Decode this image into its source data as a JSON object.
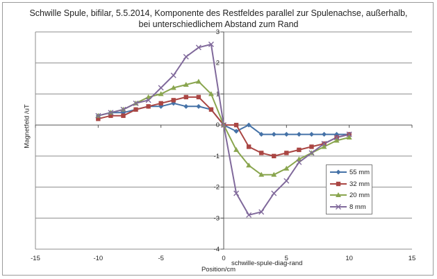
{
  "chart_data": {
    "type": "line",
    "title_line1": "Schwille Spule, bifilar, 5.5.2014, Komponente des Restfeldes parallel zur Spulenachse, außerhalb,",
    "title_line2": "bei unterschiedlichem Abstand zum Rand",
    "xlabel": "Position/cm",
    "ylabel": "Magnetfeld /uT",
    "annotation": "schwille-spule-diag-rand",
    "xlim": [
      -15,
      15
    ],
    "ylim": [
      -4,
      3
    ],
    "x_ticks": [
      -15,
      -10,
      -5,
      0,
      5,
      10,
      15
    ],
    "y_ticks": [
      -4,
      -3,
      -2,
      -1,
      0,
      1,
      2,
      3
    ],
    "grid": "horizontal",
    "legend_position": "right",
    "x": [
      -10,
      -9,
      -8,
      -7,
      -6,
      -5,
      -4,
      -3,
      -2,
      -1,
      0,
      1,
      2,
      3,
      4,
      5,
      6,
      7,
      8,
      9,
      10
    ],
    "series": [
      {
        "name": "55 mm",
        "color": "#4572a7",
        "marker": "diamond",
        "values": [
          0.3,
          0.4,
          0.4,
          0.5,
          0.6,
          0.6,
          0.7,
          0.6,
          0.6,
          0.5,
          0,
          -0.2,
          0,
          -0.3,
          -0.3,
          -0.3,
          -0.3,
          -0.3,
          -0.3,
          -0.3,
          -0.3
        ]
      },
      {
        "name": "32 mm",
        "color": "#aa4643",
        "marker": "square",
        "values": [
          0.2,
          0.3,
          0.3,
          0.5,
          0.6,
          0.7,
          0.8,
          0.9,
          0.9,
          0.5,
          0,
          0,
          -0.7,
          -0.9,
          -1.0,
          -0.9,
          -0.8,
          -0.7,
          -0.6,
          -0.4,
          -0.3
        ]
      },
      {
        "name": "20 mm",
        "color": "#89a54e",
        "marker": "triangle",
        "values": [
          0.3,
          0.4,
          0.5,
          0.7,
          0.9,
          1.0,
          1.2,
          1.3,
          1.4,
          1.0,
          0,
          -0.8,
          -1.3,
          -1.6,
          -1.6,
          -1.4,
          -1.1,
          -0.9,
          -0.7,
          -0.5,
          -0.4
        ]
      },
      {
        "name": "8 mm",
        "color": "#80699b",
        "marker": "x",
        "values": [
          0.3,
          0.4,
          0.5,
          0.7,
          0.8,
          1.2,
          1.6,
          2.2,
          2.5,
          2.6,
          0,
          -2.2,
          -2.9,
          -2.8,
          -2.2,
          -1.8,
          -1.2,
          -0.9,
          -0.6,
          -0.4,
          -0.3
        ]
      }
    ]
  }
}
